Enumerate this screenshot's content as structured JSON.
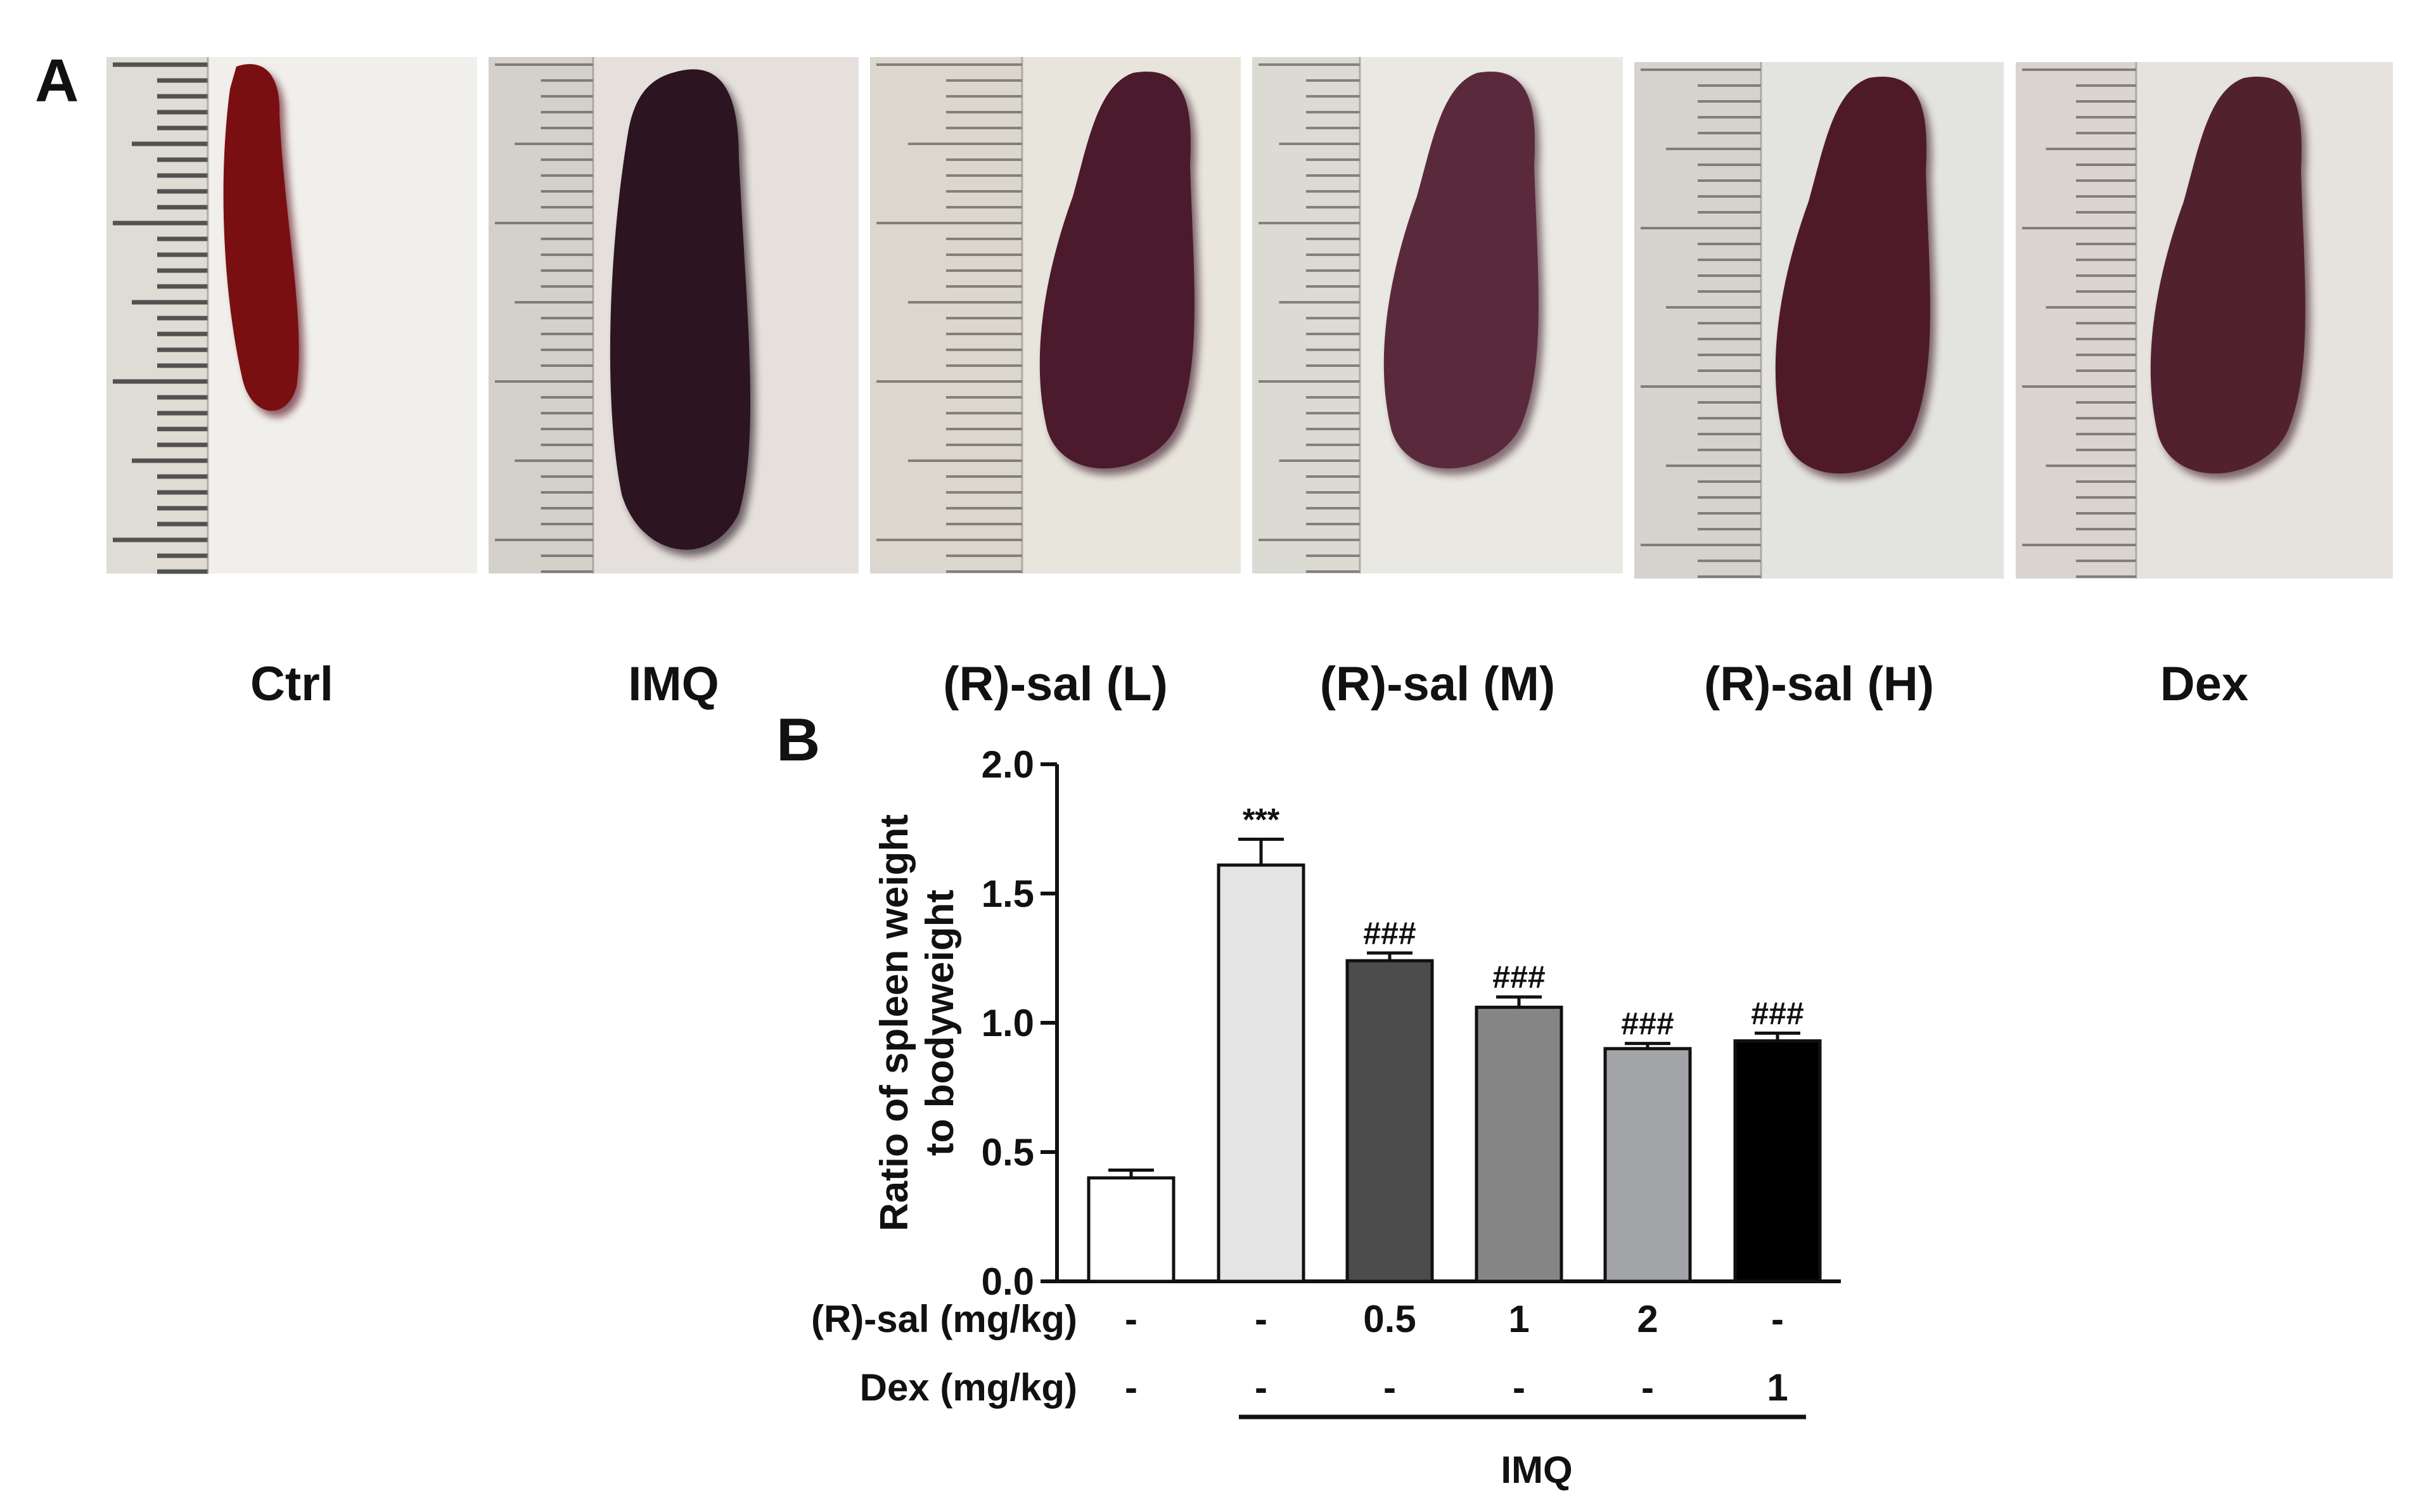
{
  "panel_a": {
    "label": "A",
    "photos": [
      {
        "label": "Ctrl",
        "bg": "#f1efec",
        "ruler": "#cfccc4",
        "organ": "#7a0f12",
        "organ_dark": "#4e0609",
        "size": "small"
      },
      {
        "label": "IMQ",
        "bg": "#e5e0dc",
        "ruler": "#c7c3bc",
        "organ": "#2c1420",
        "organ_dark": "#1a0a12",
        "size": "large"
      },
      {
        "label": "(R)-sal (L)",
        "bg": "#e8e5dd",
        "ruler": "#cfcbc1",
        "organ": "#4b1a2c",
        "organ_dark": "#33101e",
        "size": "medium"
      },
      {
        "label": "(R)-sal (M)",
        "bg": "#e9e8e3",
        "ruler": "#cfcdc6",
        "organ": "#5a2a3c",
        "organ_dark": "#3f1a29",
        "size": "medium"
      },
      {
        "label": "(R)-sal (H)",
        "bg": "#e3e3df",
        "ruler": "#c8c6bf",
        "organ": "#4e1a2a",
        "organ_dark": "#35101d",
        "size": "medium"
      },
      {
        "label": "Dex",
        "bg": "#e6e2dd",
        "ruler": "#cdc8bf",
        "organ": "#52212f",
        "organ_dark": "#3a1420",
        "size": "medium"
      }
    ]
  },
  "panel_b": {
    "label": "B",
    "row_labels": {
      "rsal": "(R)-sal (mg/kg)",
      "dex": "Dex (mg/kg)"
    },
    "bracket_label": "IMQ"
  },
  "chart_data": {
    "type": "bar",
    "ylabel": [
      "Ratio of spleen weight",
      "to bodyweight"
    ],
    "ylim": [
      0,
      2.0
    ],
    "yticks": [
      "0.0",
      "0.5",
      "1.0",
      "1.5",
      "2.0"
    ],
    "categories": [
      "Ctrl",
      "IMQ",
      "(R)-sal (L)",
      "(R)-sal (M)",
      "(R)-sal (H)",
      "Dex"
    ],
    "values": [
      0.4,
      1.61,
      1.24,
      1.06,
      0.9,
      0.93
    ],
    "errors": [
      0.03,
      0.1,
      0.03,
      0.04,
      0.02,
      0.03
    ],
    "annotations": [
      "",
      "***",
      "###",
      "###",
      "###",
      "###"
    ],
    "rsal_doses": [
      "-",
      "-",
      "0.5",
      "1",
      "2",
      "-"
    ],
    "dex_doses": [
      "-",
      "-",
      "-",
      "-",
      "-",
      "1"
    ],
    "colors": [
      "#ffffff",
      "#e4e4e4",
      "#4c4c4c",
      "#858585",
      "#a3a4a7",
      "#000000"
    ]
  }
}
